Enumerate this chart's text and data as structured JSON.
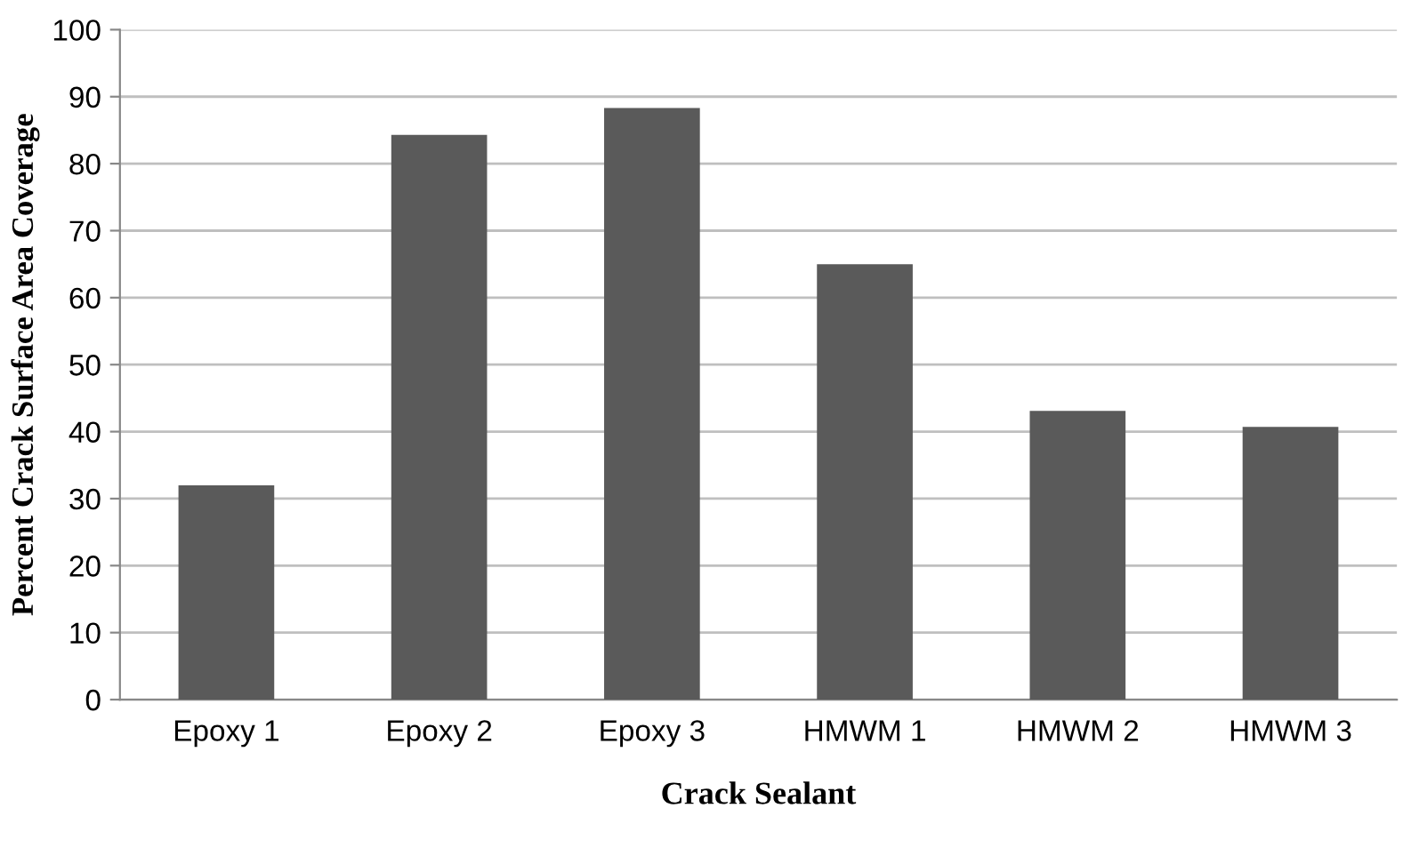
{
  "chart_data": {
    "type": "bar",
    "xlabel": "Crack Sealant",
    "ylabel": "Percent Crack Surface Area Coverage",
    "categories": [
      "Epoxy 1",
      "Epoxy 2",
      "Epoxy 3",
      "HMWM 1",
      "HMWM 2",
      "HMWM 3"
    ],
    "values": [
      32,
      84.3,
      88.3,
      65,
      43.1,
      40.7
    ],
    "color": "#5a5a5a",
    "ylim": [
      0,
      100
    ],
    "yticks": [
      0,
      10,
      20,
      30,
      40,
      50,
      60,
      70,
      80,
      90,
      100
    ],
    "grid": "y"
  }
}
